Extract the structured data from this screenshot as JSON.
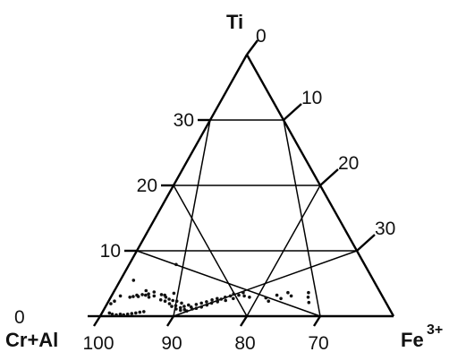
{
  "chart_data": {
    "type": "scatter",
    "subtype": "ternary",
    "title": "",
    "apex_labels": {
      "top": "Ti",
      "left": "Cr+Al",
      "right_base": "Fe",
      "right_sup": "3+"
    },
    "ti_axis_ticks": [
      {
        "value": 0,
        "label": "0"
      },
      {
        "value": 10,
        "label": "10"
      },
      {
        "value": 20,
        "label": "20"
      },
      {
        "value": 30,
        "label": "30"
      }
    ],
    "base_axis_ticks": [
      {
        "value": 100,
        "label": "100"
      },
      {
        "value": 90,
        "label": "90"
      },
      {
        "value": 80,
        "label": "80"
      },
      {
        "value": 70,
        "label": "70"
      }
    ],
    "right_axis_ticks": [
      {
        "value": 10,
        "label": "10"
      },
      {
        "value": 20,
        "label": "20"
      },
      {
        "value": 30,
        "label": "30"
      }
    ],
    "grid": true,
    "axis_note": "Ti 0-40 from base to apex; Cr+Al 100-60 along base; Fe3+ along right edge",
    "points": [
      {
        "crAl": 99.5,
        "ti": 1.9
      },
      {
        "crAl": 99.2,
        "ti": 2.3
      },
      {
        "crAl": 98.8,
        "ti": 3.1
      },
      {
        "crAl": 98.2,
        "ti": 5.5
      },
      {
        "crAl": 97.4,
        "ti": 2.9
      },
      {
        "crAl": 97.0,
        "ti": 3.0
      },
      {
        "crAl": 96.6,
        "ti": 3.2
      },
      {
        "crAl": 96.3,
        "ti": 3.0
      },
      {
        "crAl": 95.9,
        "ti": 3.3
      },
      {
        "crAl": 95.7,
        "ti": 3.9
      },
      {
        "crAl": 95.4,
        "ti": 3.2
      },
      {
        "crAl": 95.1,
        "ti": 3.4
      },
      {
        "crAl": 94.8,
        "ti": 2.9
      },
      {
        "crAl": 94.5,
        "ti": 3.7
      },
      {
        "crAl": 94.2,
        "ti": 3.1
      },
      {
        "crAl": 93.6,
        "ti": 7.9
      },
      {
        "crAl": 93.3,
        "ti": 3.3
      },
      {
        "crAl": 93.0,
        "ti": 2.5
      },
      {
        "crAl": 92.8,
        "ti": 3.2
      },
      {
        "crAl": 92.5,
        "ti": 2.9
      },
      {
        "crAl": 92.3,
        "ti": 2.3
      },
      {
        "crAl": 91.9,
        "ti": 2.6
      },
      {
        "crAl": 91.7,
        "ti": 3.5
      },
      {
        "crAl": 91.5,
        "ti": 1.9
      },
      {
        "crAl": 91.3,
        "ti": 2.4
      },
      {
        "crAl": 91.0,
        "ti": 1.5
      },
      {
        "crAl": 90.7,
        "ti": 2.3
      },
      {
        "crAl": 90.5,
        "ti": 1.6
      },
      {
        "crAl": 90.2,
        "ti": 1.1
      },
      {
        "crAl": 89.9,
        "ti": 2.0
      },
      {
        "crAl": 89.7,
        "ti": 1.3
      },
      {
        "crAl": 89.5,
        "ti": 0.9
      },
      {
        "crAl": 89.3,
        "ti": 1.5
      },
      {
        "crAl": 89.0,
        "ti": 1.0
      },
      {
        "crAl": 88.8,
        "ti": 1.7
      },
      {
        "crAl": 88.6,
        "ti": 0.8
      },
      {
        "crAl": 88.3,
        "ti": 1.4
      },
      {
        "crAl": 88.0,
        "ti": 1.1
      },
      {
        "crAl": 87.8,
        "ti": 1.8
      },
      {
        "crAl": 87.5,
        "ti": 1.2
      },
      {
        "crAl": 87.2,
        "ti": 2.0
      },
      {
        "crAl": 86.9,
        "ti": 1.4
      },
      {
        "crAl": 86.6,
        "ti": 2.2
      },
      {
        "crAl": 86.3,
        "ti": 1.7
      },
      {
        "crAl": 86.0,
        "ti": 2.5
      },
      {
        "crAl": 85.8,
        "ti": 2.0
      },
      {
        "crAl": 85.4,
        "ti": 2.7
      },
      {
        "crAl": 85.1,
        "ti": 2.2
      },
      {
        "crAl": 84.8,
        "ti": 2.6
      },
      {
        "crAl": 84.4,
        "ti": 2.9
      },
      {
        "crAl": 84.1,
        "ti": 2.4
      },
      {
        "crAl": 83.8,
        "ti": 3.1
      },
      {
        "crAl": 83.5,
        "ti": 3.4
      },
      {
        "crAl": 83.2,
        "ti": 2.7
      },
      {
        "crAl": 82.7,
        "ti": 3.2
      },
      {
        "crAl": 82.3,
        "ti": 3.6
      },
      {
        "crAl": 81.9,
        "ti": 3.1
      },
      {
        "crAl": 81.1,
        "ti": 2.9
      },
      {
        "crAl": 78.8,
        "ti": 2.8
      },
      {
        "crAl": 78.2,
        "ti": 2.3
      },
      {
        "crAl": 77.5,
        "ti": 3.2
      },
      {
        "crAl": 76.7,
        "ti": 2.7
      },
      {
        "crAl": 76.2,
        "ti": 3.6
      },
      {
        "crAl": 75.5,
        "ti": 3.1
      },
      {
        "crAl": 73.4,
        "ti": 3.6
      },
      {
        "crAl": 73.1,
        "ti": 2.9
      },
      {
        "crAl": 72.6,
        "ti": 2.1
      },
      {
        "crAl": 99.0,
        "ti": 0.5
      },
      {
        "crAl": 98.5,
        "ti": 0.3
      },
      {
        "crAl": 97.9,
        "ti": 0.2
      },
      {
        "crAl": 97.4,
        "ti": 0.3
      },
      {
        "crAl": 96.9,
        "ti": 0.2
      },
      {
        "crAl": 96.4,
        "ti": 0.3
      },
      {
        "crAl": 95.9,
        "ti": 0.4
      },
      {
        "crAl": 95.4,
        "ti": 0.5
      },
      {
        "crAl": 94.9,
        "ti": 0.6
      },
      {
        "crAl": 94.4,
        "ti": 0.7
      }
    ]
  }
}
